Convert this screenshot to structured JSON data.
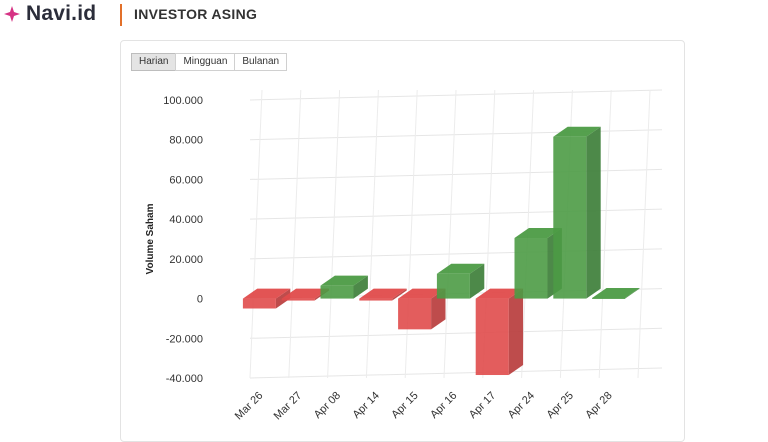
{
  "header": {
    "logo_text": "Navi.id",
    "section_title": "INVESTOR ASING"
  },
  "tabs": [
    {
      "label": "Harian",
      "active": true
    },
    {
      "label": "Mingguan",
      "active": false
    },
    {
      "label": "Bulanan",
      "active": false
    }
  ],
  "colors": {
    "accent": "#e2702a",
    "logo": "#d63384",
    "positive": "#4c9b45",
    "negative": "#e04b4b"
  },
  "chart_data": {
    "type": "bar",
    "ylabel": "Volume Saham",
    "ylim": [
      -40000,
      100000
    ],
    "yticks": [
      {
        "value": 100000,
        "label": "100.000"
      },
      {
        "value": 80000,
        "label": "80.000"
      },
      {
        "value": 60000,
        "label": "60.000"
      },
      {
        "value": 40000,
        "label": "40.000"
      },
      {
        "value": 20000,
        "label": "20.000"
      },
      {
        "value": 0,
        "label": "0"
      },
      {
        "value": -20000,
        "label": "-20.000"
      },
      {
        "value": -40000,
        "label": "-40.000"
      }
    ],
    "categories": [
      "Mar 26",
      "Mar 27",
      "Apr 08",
      "Apr 14",
      "Apr 15",
      "Apr 16",
      "Apr 17",
      "Apr 24",
      "Apr 25",
      "Apr 28"
    ],
    "values": [
      -5000,
      -1000,
      6500,
      -1000,
      -15500,
      12500,
      -38500,
      30500,
      81500,
      300
    ],
    "grid": true,
    "legend": false
  }
}
